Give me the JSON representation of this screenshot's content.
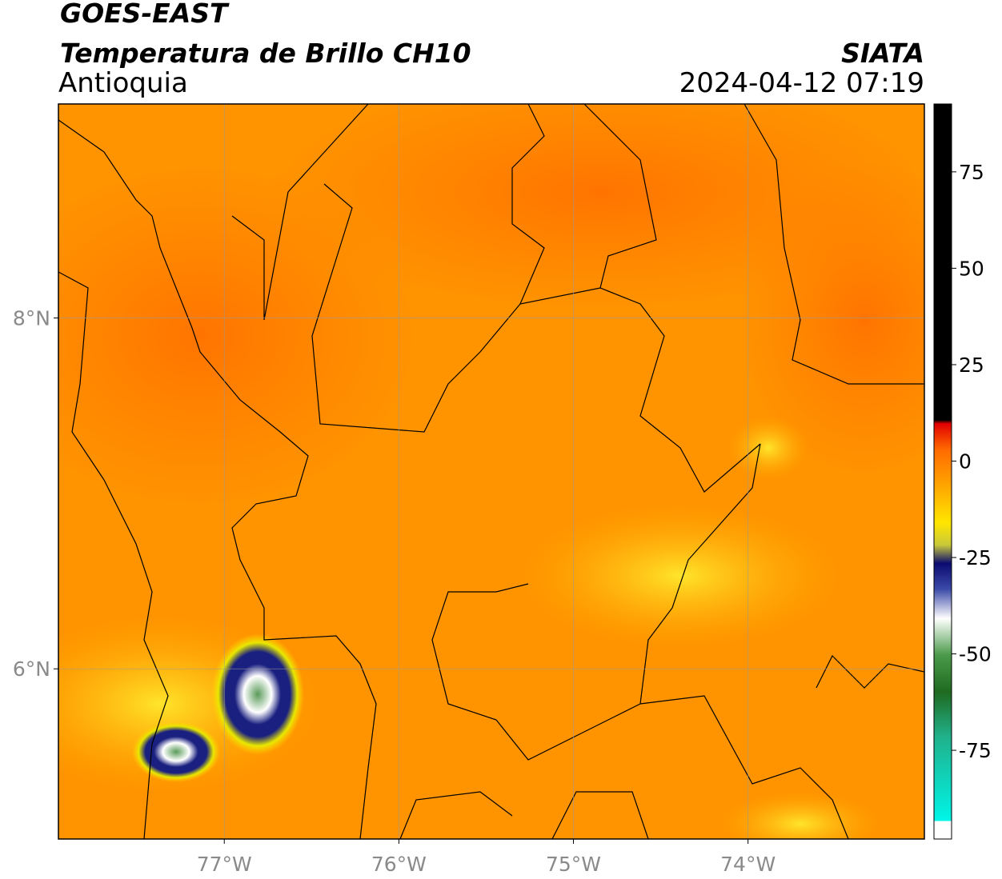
{
  "header": {
    "satellite": "GOES-EAST",
    "product": "Temperatura de Brillo CH10",
    "region": "Antioquia",
    "agency": "SIATA",
    "datetime": "2024-04-12 07:19"
  },
  "map": {
    "lon_range": [
      -77.95,
      -72.99
    ],
    "lat_range": [
      5.03,
      9.22
    ],
    "lon_ticks": [
      {
        "value": -77,
        "label": "77°W"
      },
      {
        "value": -76,
        "label": "76°W"
      },
      {
        "value": -75,
        "label": "75°W"
      },
      {
        "value": -74,
        "label": "74°W"
      }
    ],
    "lat_ticks": [
      {
        "value": 8,
        "label": "8°N"
      },
      {
        "value": 6,
        "label": "6°N"
      }
    ]
  },
  "colorbar": {
    "range": [
      -98,
      92.6
    ],
    "ticks": [
      75,
      50,
      25,
      0,
      -25,
      -50,
      -75
    ]
  }
}
